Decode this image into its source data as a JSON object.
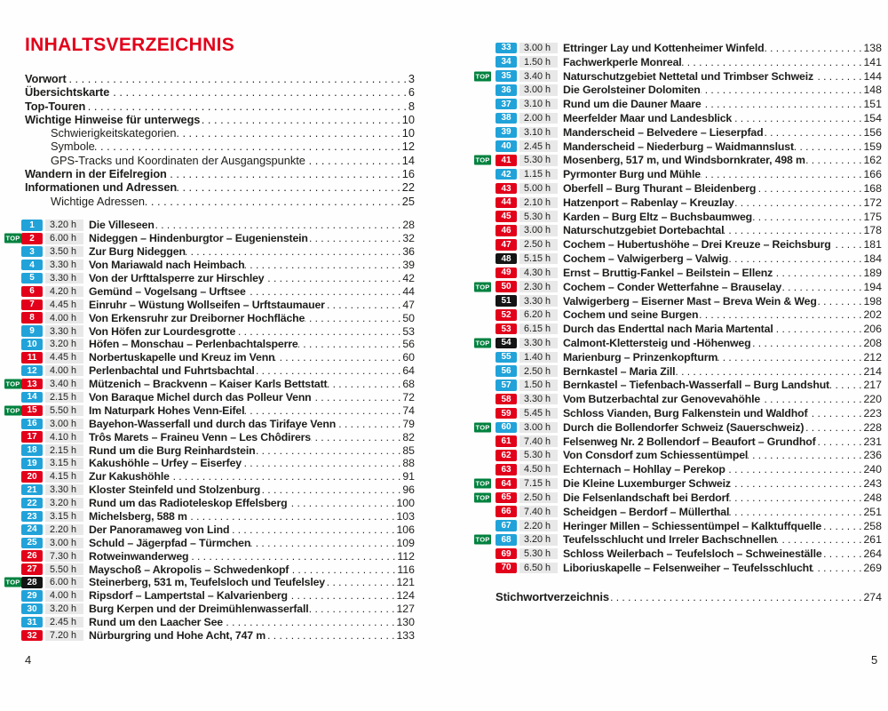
{
  "page": {
    "title": "INHALTSVERZEICHNIS",
    "left_folio": "4",
    "right_folio": "5",
    "top_badge_label": "TOP"
  },
  "colors": {
    "heading_red": "#e2001a",
    "badge_blue": "#21a3d9",
    "badge_red": "#e2001a",
    "badge_black": "#141414",
    "top_badge_green": "#00813e",
    "time_strip_gray": "#e8e8e8",
    "text": "#1d1d1b"
  },
  "front_matter": [
    {
      "label": "Vorwort",
      "page": "3",
      "style": "bold"
    },
    {
      "label": "Übersichtskarte",
      "page": "6",
      "style": "bold"
    },
    {
      "label": "Top-Touren",
      "page": "8",
      "style": "bold"
    },
    {
      "label": "Wichtige Hinweise für unterwegs",
      "page": "10",
      "style": "bold"
    },
    {
      "label": "Schwierigkeitskategorien",
      "page": "10",
      "style": "sub"
    },
    {
      "label": "Symbole",
      "page": "12",
      "style": "sub"
    },
    {
      "label": "GPS-Tracks und Koordinaten der Ausgangspunkte",
      "page": "14",
      "style": "sub"
    },
    {
      "label": "Wandern in der Eifelregion",
      "page": "16",
      "style": "bold"
    },
    {
      "label": "Informationen und Adressen",
      "page": "22",
      "style": "bold"
    },
    {
      "label": "Wichtige Adressen",
      "page": "25",
      "style": "sub"
    }
  ],
  "tours_left": [
    {
      "no": "1",
      "difficulty": "blue",
      "top": false,
      "time": "3.20 h",
      "title": "Die Villeseen",
      "page": "28"
    },
    {
      "no": "2",
      "difficulty": "red",
      "top": true,
      "time": "6.00 h",
      "title": "Nideggen – Hindenburgtor – Eugenienstein",
      "page": "32"
    },
    {
      "no": "3",
      "difficulty": "blue",
      "top": false,
      "time": "3.50 h",
      "title": "Zur Burg Nideggen",
      "page": "36"
    },
    {
      "no": "4",
      "difficulty": "blue",
      "top": false,
      "time": "3.30 h",
      "title": "Von Mariawald nach Heimbach",
      "page": "39"
    },
    {
      "no": "5",
      "difficulty": "blue",
      "top": false,
      "time": "3.30 h",
      "title": "Von der Urfttalsperre zur Hirschley",
      "page": "42"
    },
    {
      "no": "6",
      "difficulty": "red",
      "top": false,
      "time": "4.20 h",
      "title": "Gemünd – Vogelsang – Urftsee",
      "page": "44"
    },
    {
      "no": "7",
      "difficulty": "red",
      "top": false,
      "time": "4.45 h",
      "title": "Einruhr – Wüstung Wollseifen – Urftstaumauer",
      "page": "47"
    },
    {
      "no": "8",
      "difficulty": "red",
      "top": false,
      "time": "4.00 h",
      "title": "Von Erkensruhr zur Dreiborner Hochfläche",
      "page": "50"
    },
    {
      "no": "9",
      "difficulty": "blue",
      "top": false,
      "time": "3.30 h",
      "title": "Von Höfen zur Lourdesgrotte",
      "page": "53"
    },
    {
      "no": "10",
      "difficulty": "blue",
      "top": false,
      "time": "3.20 h",
      "title": "Höfen – Monschau – Perlenbachtalsperre",
      "page": "56"
    },
    {
      "no": "11",
      "difficulty": "red",
      "top": false,
      "time": "4.45 h",
      "title": "Norbertuskapelle und Kreuz im Venn",
      "page": "60"
    },
    {
      "no": "12",
      "difficulty": "blue",
      "top": false,
      "time": "4.00 h",
      "title": "Perlenbachtal und Fuhrtsbachtal",
      "page": "64"
    },
    {
      "no": "13",
      "difficulty": "red",
      "top": true,
      "time": "3.40 h",
      "title": "Mützenich – Brackvenn – Kaiser Karls Bettstatt",
      "page": "68"
    },
    {
      "no": "14",
      "difficulty": "blue",
      "top": false,
      "time": "2.15 h",
      "title": "Von Baraque Michel durch das Polleur Venn",
      "page": "72"
    },
    {
      "no": "15",
      "difficulty": "red",
      "top": true,
      "time": "5.50 h",
      "title": "Im Naturpark Hohes Venn-Eifel",
      "page": "74"
    },
    {
      "no": "16",
      "difficulty": "blue",
      "top": false,
      "time": "3.00 h",
      "title": "Bayehon-Wasserfall und durch das Tirifaye Venn",
      "page": "79"
    },
    {
      "no": "17",
      "difficulty": "red",
      "top": false,
      "time": "4.10 h",
      "title": "Trôs Marets – Fraineu Venn – Les Chôdirers",
      "page": "82"
    },
    {
      "no": "18",
      "difficulty": "blue",
      "top": false,
      "time": "2.15 h",
      "title": "Rund um die Burg Reinhardstein",
      "page": "85"
    },
    {
      "no": "19",
      "difficulty": "blue",
      "top": false,
      "time": "3.15 h",
      "title": "Kakushöhle – Urfey – Eiserfey",
      "page": "88"
    },
    {
      "no": "20",
      "difficulty": "red",
      "top": false,
      "time": "4.15 h",
      "title": "Zur Kakushöhle",
      "page": "91"
    },
    {
      "no": "21",
      "difficulty": "blue",
      "top": false,
      "time": "3.30 h",
      "title": "Kloster Steinfeld und Stolzenburg",
      "page": "96"
    },
    {
      "no": "22",
      "difficulty": "blue",
      "top": false,
      "time": "3.20 h",
      "title": "Rund um das Radioteleskop Effelsberg",
      "page": "100"
    },
    {
      "no": "23",
      "difficulty": "blue",
      "top": false,
      "time": "3.15 h",
      "title": "Michelsberg, 588 m",
      "page": "103"
    },
    {
      "no": "24",
      "difficulty": "blue",
      "top": false,
      "time": "2.20 h",
      "title": "Der Panoramaweg von Lind",
      "page": "106"
    },
    {
      "no": "25",
      "difficulty": "blue",
      "top": false,
      "time": "3.00 h",
      "title": "Schuld – Jägerpfad – Türmchen",
      "page": "109"
    },
    {
      "no": "26",
      "difficulty": "red",
      "top": false,
      "time": "7.30 h",
      "title": "Rotweinwanderweg",
      "page": "112"
    },
    {
      "no": "27",
      "difficulty": "red",
      "top": false,
      "time": "5.50 h",
      "title": "Mayschoß – Akropolis – Schwedenkopf",
      "page": "116"
    },
    {
      "no": "28",
      "difficulty": "black",
      "top": true,
      "time": "6.00 h",
      "title": "Steinerberg, 531 m, Teufelsloch und Teufelsley",
      "page": "121"
    },
    {
      "no": "29",
      "difficulty": "blue",
      "top": false,
      "time": "4.00 h",
      "title": "Ripsdorf – Lampertstal – Kalvarienberg",
      "page": "124"
    },
    {
      "no": "30",
      "difficulty": "blue",
      "top": false,
      "time": "3.20 h",
      "title": "Burg Kerpen und der Dreimühlenwasserfall",
      "page": "127"
    },
    {
      "no": "31",
      "difficulty": "blue",
      "top": false,
      "time": "2.45 h",
      "title": "Rund um den Laacher See",
      "page": "130"
    },
    {
      "no": "32",
      "difficulty": "red",
      "top": false,
      "time": "7.20 h",
      "title": "Nürburgring und Hohe Acht, 747 m",
      "page": "133"
    }
  ],
  "tours_right": [
    {
      "no": "33",
      "difficulty": "blue",
      "top": false,
      "time": "3.00 h",
      "title": "Ettringer Lay und Kottenheimer Winfeld",
      "page": "138"
    },
    {
      "no": "34",
      "difficulty": "blue",
      "top": false,
      "time": "1.50 h",
      "title": "Fachwerkperle Monreal",
      "page": "141"
    },
    {
      "no": "35",
      "difficulty": "blue",
      "top": true,
      "time": "3.40 h",
      "title": "Naturschutzgebiet Nettetal und Trimbser Schweiz",
      "page": "144"
    },
    {
      "no": "36",
      "difficulty": "blue",
      "top": false,
      "time": "3.00 h",
      "title": "Die Gerolsteiner Dolomiten",
      "page": "148"
    },
    {
      "no": "37",
      "difficulty": "blue",
      "top": false,
      "time": "3.10 h",
      "title": "Rund um die Dauner Maare",
      "page": "151"
    },
    {
      "no": "38",
      "difficulty": "blue",
      "top": false,
      "time": "2.00 h",
      "title": "Meerfelder Maar und Landesblick",
      "page": "154"
    },
    {
      "no": "39",
      "difficulty": "blue",
      "top": false,
      "time": "3.10 h",
      "title": "Manderscheid – Belvedere – Lieserpfad",
      "page": "156"
    },
    {
      "no": "40",
      "difficulty": "blue",
      "top": false,
      "time": "2.45 h",
      "title": "Manderscheid – Niederburg – Waidmannslust",
      "page": "159"
    },
    {
      "no": "41",
      "difficulty": "red",
      "top": true,
      "time": "5.30 h",
      "title": "Mosenberg, 517 m, und Windsbornkrater, 498 m",
      "page": "162"
    },
    {
      "no": "42",
      "difficulty": "blue",
      "top": false,
      "time": "1.15 h",
      "title": "Pyrmonter Burg und Mühle",
      "page": "166"
    },
    {
      "no": "43",
      "difficulty": "red",
      "top": false,
      "time": "5.00 h",
      "title": "Oberfell – Burg Thurant – Bleidenberg",
      "page": "168"
    },
    {
      "no": "44",
      "difficulty": "red",
      "top": false,
      "time": "2.10 h",
      "title": "Hatzenport – Rabenlay – Kreuzlay",
      "page": "172"
    },
    {
      "no": "45",
      "difficulty": "red",
      "top": false,
      "time": "5.30 h",
      "title": "Karden – Burg Eltz – Buchsbaumweg",
      "page": "175"
    },
    {
      "no": "46",
      "difficulty": "red",
      "top": false,
      "time": "3.00 h",
      "title": "Naturschutzgebiet Dortebachtal",
      "page": "178"
    },
    {
      "no": "47",
      "difficulty": "red",
      "top": false,
      "time": "2.50 h",
      "title": "Cochem – Hubertushöhe – Drei Kreuze – Reichsburg",
      "page": "181"
    },
    {
      "no": "48",
      "difficulty": "black",
      "top": false,
      "time": "5.15 h",
      "title": "Cochem – Valwigerberg – Valwig",
      "page": "184"
    },
    {
      "no": "49",
      "difficulty": "red",
      "top": false,
      "time": "4.30 h",
      "title": "Ernst – Bruttig-Fankel – Beilstein – Ellenz",
      "page": "189"
    },
    {
      "no": "50",
      "difficulty": "red",
      "top": true,
      "time": "2.30 h",
      "title": "Cochem – Conder Wetterfahne – Brauselay",
      "page": "194"
    },
    {
      "no": "51",
      "difficulty": "black",
      "top": false,
      "time": "3.30 h",
      "title": "Valwigerberg – Eiserner Mast – Breva Wein & Weg",
      "page": "198"
    },
    {
      "no": "52",
      "difficulty": "red",
      "top": false,
      "time": "6.20 h",
      "title": "Cochem und seine Burgen",
      "page": "202"
    },
    {
      "no": "53",
      "difficulty": "red",
      "top": false,
      "time": "6.15 h",
      "title": "Durch das Enderttal nach Maria Martental",
      "page": "206"
    },
    {
      "no": "54",
      "difficulty": "black",
      "top": true,
      "time": "3.30 h",
      "title": "Calmont-Klettersteig und -Höhenweg",
      "page": "208"
    },
    {
      "no": "55",
      "difficulty": "blue",
      "top": false,
      "time": "1.40 h",
      "title": "Marienburg – Prinzenkopfturm",
      "page": "212"
    },
    {
      "no": "56",
      "difficulty": "blue",
      "top": false,
      "time": "2.50 h",
      "title": "Bernkastel – Maria Zill",
      "page": "214"
    },
    {
      "no": "57",
      "difficulty": "blue",
      "top": false,
      "time": "1.50 h",
      "title": "Bernkastel – Tiefenbach-Wasserfall – Burg Landshut",
      "page": "217"
    },
    {
      "no": "58",
      "difficulty": "red",
      "top": false,
      "time": "3.30 h",
      "title": "Vom Butzerbachtal zur Genovevahöhle",
      "page": "220"
    },
    {
      "no": "59",
      "difficulty": "red",
      "top": false,
      "time": "5.45 h",
      "title": "Schloss Vianden, Burg Falkenstein und Waldhof",
      "page": "223"
    },
    {
      "no": "60",
      "difficulty": "blue",
      "top": true,
      "time": "3.00 h",
      "title": "Durch die Bollendorfer Schweiz (Sauerschweiz)",
      "page": "228"
    },
    {
      "no": "61",
      "difficulty": "red",
      "top": false,
      "time": "7.40 h",
      "title": "Felsenweg Nr. 2 Bollendorf – Beaufort – Grundhof",
      "page": "231"
    },
    {
      "no": "62",
      "difficulty": "red",
      "top": false,
      "time": "5.30 h",
      "title": "Von Consdorf zum Schiessentümpel",
      "page": "236"
    },
    {
      "no": "63",
      "difficulty": "red",
      "top": false,
      "time": "4.50 h",
      "title": "Echternach – Hohllay – Perekop",
      "page": "240"
    },
    {
      "no": "64",
      "difficulty": "red",
      "top": true,
      "time": "7.15 h",
      "title": "Die Kleine Luxemburger Schweiz",
      "page": "243"
    },
    {
      "no": "65",
      "difficulty": "red",
      "top": true,
      "time": "2.50 h",
      "title": "Die Felsenlandschaft bei Berdorf",
      "page": "248"
    },
    {
      "no": "66",
      "difficulty": "red",
      "top": false,
      "time": "7.40 h",
      "title": "Scheidgen – Berdorf – Müllerthal",
      "page": "251"
    },
    {
      "no": "67",
      "difficulty": "blue",
      "top": false,
      "time": "2.20 h",
      "title": "Heringer Millen – Schiessentümpel – Kalktuffquelle",
      "page": "258"
    },
    {
      "no": "68",
      "difficulty": "blue",
      "top": true,
      "time": "3.20 h",
      "title": "Teufelsschlucht und Irreler Bachschnellen",
      "page": "261"
    },
    {
      "no": "69",
      "difficulty": "red",
      "top": false,
      "time": "5.30 h",
      "title": "Schloss Weilerbach – Teufelsloch – Schweineställe",
      "page": "264"
    },
    {
      "no": "70",
      "difficulty": "red",
      "top": false,
      "time": "6.50 h",
      "title": "Liboriuskapelle – Felsenweiher – Teufelsschlucht",
      "page": "269"
    }
  ],
  "index_entry": {
    "label": "Stichwortverzeichnis",
    "page": "274"
  }
}
